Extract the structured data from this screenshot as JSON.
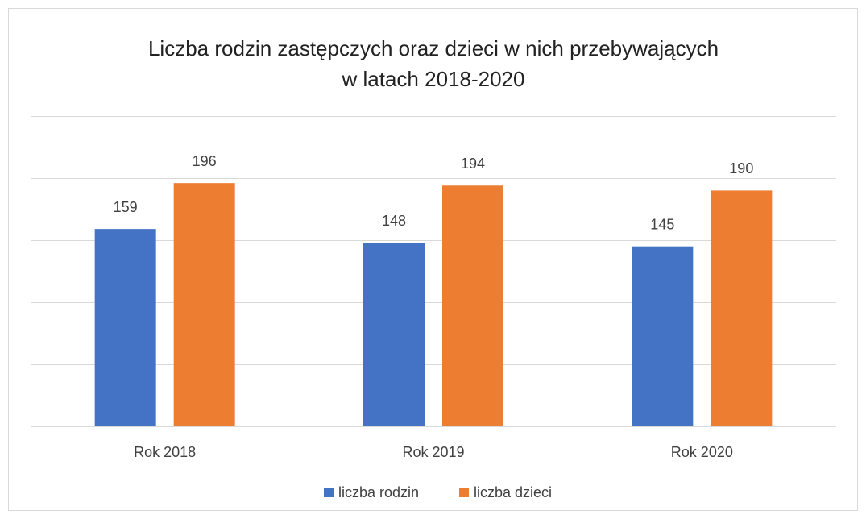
{
  "chart_data": {
    "type": "bar",
    "title": [
      "Liczba rodzin zastępczych oraz dzieci w nich przebywających",
      "w latach 2018-2020"
    ],
    "categories": [
      "Rok 2018",
      "Rok 2019",
      "Rok 2020"
    ],
    "series": [
      {
        "name": "liczba rodzin",
        "color": "#4472c4",
        "values": [
          159,
          148,
          145
        ]
      },
      {
        "name": "liczba dzieci",
        "color": "#ed7d31",
        "values": [
          196,
          194,
          190
        ]
      }
    ],
    "ylim": [
      0,
      250
    ],
    "yticks": [
      0,
      50,
      100,
      150,
      200,
      250
    ],
    "grid": true,
    "legend": "bottom"
  }
}
